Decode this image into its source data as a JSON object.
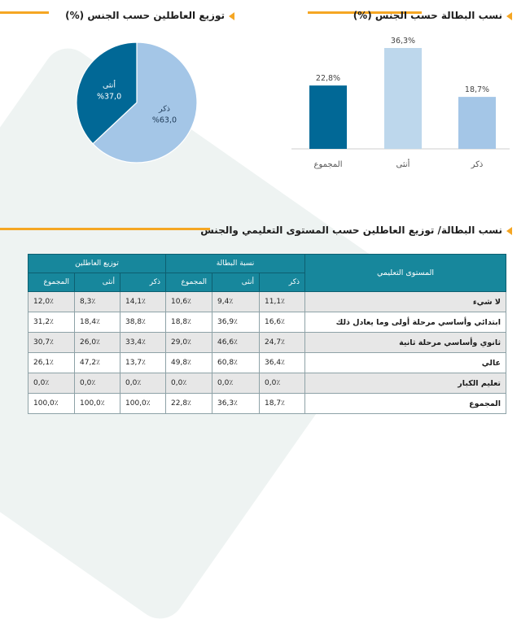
{
  "sections": {
    "bar_title": "نسب البطالة حسب الجنس (%)",
    "pie_title": "توزيع العاطلين حسب الجنس (%)",
    "table_title": "نسب البطالة/ توزيع العاطلين حسب المستوى التعليمي والجنس"
  },
  "colors": {
    "dark_blue": "#016896",
    "light_blue": "#bdd7ec",
    "mid_blue": "#a4c6e7",
    "accent": "#f5a623",
    "table_header": "#17879c"
  },
  "chart_data": [
    {
      "type": "bar",
      "title": "نسب البطالة حسب الجنس (%)",
      "categories": [
        "المجموع",
        "أنثى",
        "ذكر"
      ],
      "values": [
        22.8,
        36.3,
        18.7
      ],
      "data_labels": [
        "22,8%",
        "36,3%",
        "18,7%"
      ],
      "colors": [
        "#016896",
        "#bdd7ec",
        "#a4c6e7"
      ],
      "ylim": [
        0,
        36.3
      ]
    },
    {
      "type": "pie",
      "title": "توزيع العاطلين حسب الجنس (%)",
      "slices": [
        {
          "label": "ذكر",
          "value": 63.0,
          "text": "%63,0",
          "color": "#a4c6e7"
        },
        {
          "label": "أنثى",
          "value": 37.0,
          "text": "%37,0",
          "color": "#016896"
        }
      ]
    },
    {
      "type": "table",
      "title": "نسب البطالة/ توزيع العاطلين حسب المستوى التعليمي والجنس",
      "header": {
        "edu": "المستوى التعليمي",
        "group1": "نسبة البطالة",
        "group2": "توزيع العاطلين",
        "male": "ذكر",
        "female": "أنثى",
        "total": "المجموع"
      },
      "rows": [
        {
          "label": "لا شيء",
          "cells": [
            "11,1٪",
            "9,4٪",
            "10,6٪",
            "14,1٪",
            "8,3٪",
            "12,0٪"
          ]
        },
        {
          "label": "ابتدائي وأساسي مرحلة أولى وما يعادل ذلك",
          "cells": [
            "16,6٪",
            "36,9٪",
            "18,8٪",
            "38,8٪",
            "18,4٪",
            "31,2٪"
          ]
        },
        {
          "label": "ثانوي وأساسي مرحلة ثانية",
          "cells": [
            "24,7٪",
            "46,6٪",
            "29,0٪",
            "33,4٪",
            "26,0٪",
            "30,7٪"
          ]
        },
        {
          "label": "عالي",
          "cells": [
            "36,4٪",
            "60,8٪",
            "49,8٪",
            "13,7٪",
            "47,2٪",
            "26,1٪"
          ]
        },
        {
          "label": "تعليم الكبار",
          "cells": [
            "0,0٪",
            "0,0٪",
            "0,0٪",
            "0,0٪",
            "0,0٪",
            "0,0٪"
          ]
        },
        {
          "label": "المجموع",
          "cells": [
            "18,7٪",
            "36,3٪",
            "22,8٪",
            "100,0٪",
            "100,0٪",
            "100,0٪"
          ]
        }
      ]
    }
  ]
}
